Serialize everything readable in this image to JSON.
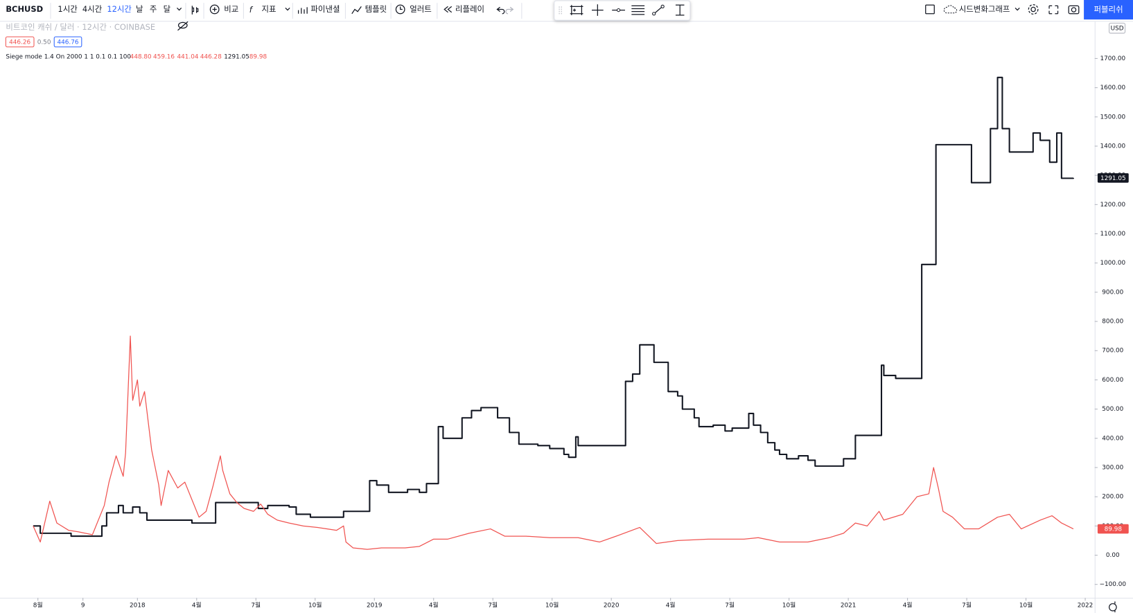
{
  "toolbar": {
    "symbol": "BCHUSD",
    "intervals": [
      "1시간",
      "4시간",
      "12시간",
      "날",
      "주",
      "달"
    ],
    "buttons": [
      "비교",
      "지표",
      "파이낸셜",
      "템플릿",
      "얼러트",
      "리플레이"
    ],
    "layout_name": "시드변화그래프",
    "publish": "퍼블리쉬"
  },
  "legend": {
    "title": "비트코인 캐쉬 / 달러 · 12시간 · COINBASE",
    "bid": "446.26",
    "spread": "0.50",
    "ask": "446.76",
    "indicator": "Siege mode 1.4 On 2000 1 1 0.1 0.1 100",
    "indicator_values": [
      "448.80",
      "459.16",
      "441.04",
      "446.28"
    ]
  },
  "chart_data": {
    "type": "line",
    "currency": "USD",
    "grid": false,
    "xlim": [
      2017.42,
      2022.04
    ],
    "ylim": [
      -146,
      1826
    ],
    "xticks": [
      {
        "value": 2017.58,
        "label": "8월"
      },
      {
        "value": 2017.77,
        "label": "9"
      },
      2018,
      {
        "value": 2018.25,
        "label": "4월"
      },
      {
        "value": 2018.5,
        "label": "7월"
      },
      {
        "value": 2018.75,
        "label": "10월"
      },
      2019,
      {
        "value": 2019.25,
        "label": "4월"
      },
      {
        "value": 2019.5,
        "label": "7월"
      },
      {
        "value": 2019.75,
        "label": "10월"
      },
      2020,
      {
        "value": 2020.25,
        "label": "4월"
      },
      {
        "value": 2020.5,
        "label": "7월"
      },
      {
        "value": 2020.75,
        "label": "10월"
      },
      2021,
      {
        "value": 2021.25,
        "label": "4월"
      },
      {
        "value": 2021.5,
        "label": "7월"
      },
      {
        "value": 2021.75,
        "label": "10월"
      },
      2022
    ],
    "yticks": [
      {
        "value": -100,
        "label": "−100.00"
      },
      {
        "value": 0,
        "label": "0.00"
      },
      {
        "value": 100,
        "label": "100.00"
      },
      {
        "value": 200,
        "label": "200.00"
      },
      {
        "value": 300,
        "label": "300.00"
      },
      {
        "value": 400,
        "label": "400.00"
      },
      {
        "value": 500,
        "label": "500.00"
      },
      {
        "value": 600,
        "label": "600.00"
      },
      {
        "value": 700,
        "label": "700.00"
      },
      {
        "value": 800,
        "label": "800.00"
      },
      {
        "value": 900,
        "label": "900.00"
      },
      {
        "value": 1000,
        "label": "1000.00"
      },
      {
        "value": 1100,
        "label": "1100.00"
      },
      {
        "value": 1200,
        "label": "1200.00"
      },
      {
        "value": 1300,
        "label": "1300.00"
      },
      {
        "value": 1400,
        "label": "1400.00"
      },
      {
        "value": 1500,
        "label": "1500.00"
      },
      {
        "value": 1600,
        "label": "1600.00"
      },
      {
        "value": 1700,
        "label": "1700.00"
      }
    ],
    "series": [
      {
        "color": "#131722",
        "step": true,
        "x": [
          2017.56,
          2017.59,
          2017.72,
          2017.85,
          2017.87,
          2017.92,
          2017.94,
          2017.98,
          2018.01,
          2018.04,
          2018.23,
          2018.33,
          2018.45,
          2018.51,
          2018.55,
          2018.64,
          2018.67,
          2018.73,
          2018.87,
          2018.98,
          2019.01,
          2019.06,
          2019.14,
          2019.19,
          2019.22,
          2019.27,
          2019.29,
          2019.37,
          2019.41,
          2019.45,
          2019.52,
          2019.57,
          2019.61,
          2019.69,
          2019.74,
          2019.8,
          2019.82,
          2019.85,
          2019.86,
          2020.06,
          2020.09,
          2020.12,
          2020.18,
          2020.24,
          2020.28,
          2020.3,
          2020.35,
          2020.37,
          2020.43,
          2020.48,
          2020.51,
          2020.58,
          2020.6,
          2020.63,
          2020.66,
          2020.69,
          2020.71,
          2020.74,
          2020.79,
          2020.83,
          2020.86,
          2020.98,
          2021.03,
          2021.14,
          2021.15,
          2021.2,
          2021.31,
          2021.37,
          2021.52,
          2021.6,
          2021.63,
          2021.65,
          2021.68,
          2021.78,
          2021.81,
          2021.85,
          2021.88,
          2021.9,
          2021.95
        ],
        "values": [
          100,
          75,
          65,
          100,
          145,
          170,
          145,
          165,
          145,
          120,
          110,
          180,
          180,
          160,
          170,
          165,
          140,
          130,
          150,
          255,
          240,
          215,
          225,
          215,
          245,
          440,
          400,
          470,
          495,
          505,
          470,
          420,
          380,
          375,
          365,
          345,
          335,
          405,
          375,
          595,
          620,
          720,
          660,
          560,
          545,
          500,
          470,
          440,
          445,
          425,
          435,
          485,
          445,
          420,
          385,
          360,
          345,
          330,
          340,
          325,
          305,
          330,
          410,
          650,
          615,
          605,
          995,
          1405,
          1275,
          1460,
          1635,
          1460,
          1380,
          1445,
          1420,
          1345,
          1445,
          1290,
          1291.05
        ]
      },
      {
        "color": "#f05350",
        "step": false,
        "x": [
          2017.56,
          2017.59,
          2017.63,
          2017.66,
          2017.71,
          2017.75,
          2017.81,
          2017.86,
          2017.88,
          2017.91,
          2017.94,
          2017.95,
          2017.97,
          2017.98,
          2018.0,
          2018.01,
          2018.03,
          2018.06,
          2018.09,
          2018.1,
          2018.13,
          2018.17,
          2018.2,
          2018.23,
          2018.26,
          2018.29,
          2018.32,
          2018.35,
          2018.36,
          2018.39,
          2018.42,
          2018.45,
          2018.49,
          2018.52,
          2018.55,
          2018.59,
          2018.64,
          2018.7,
          2018.76,
          2018.84,
          2018.87,
          2018.88,
          2018.91,
          2018.97,
          2019.03,
          2019.13,
          2019.19,
          2019.25,
          2019.31,
          2019.4,
          2019.49,
          2019.55,
          2019.64,
          2019.74,
          2019.86,
          2019.95,
          2020.02,
          2020.12,
          2020.19,
          2020.28,
          2020.41,
          2020.56,
          2020.62,
          2020.71,
          2020.83,
          2020.92,
          2020.98,
          2021.03,
          2021.08,
          2021.13,
          2021.15,
          2021.23,
          2021.29,
          2021.34,
          2021.36,
          2021.38,
          2021.4,
          2021.44,
          2021.49,
          2021.55,
          2021.63,
          2021.68,
          2021.73,
          2021.81,
          2021.86,
          2021.9,
          2021.95
        ],
        "values": [
          100,
          45,
          185,
          110,
          85,
          80,
          70,
          170,
          250,
          340,
          270,
          350,
          750,
          530,
          600,
          510,
          560,
          360,
          240,
          170,
          290,
          230,
          250,
          190,
          130,
          150,
          240,
          340,
          290,
          210,
          180,
          160,
          150,
          175,
          140,
          120,
          110,
          100,
          95,
          85,
          100,
          45,
          25,
          20,
          25,
          25,
          30,
          55,
          55,
          75,
          90,
          65,
          65,
          60,
          60,
          45,
          65,
          95,
          40,
          50,
          55,
          55,
          60,
          45,
          45,
          60,
          75,
          110,
          100,
          150,
          120,
          140,
          200,
          210,
          300,
          230,
          150,
          130,
          90,
          90,
          130,
          140,
          90,
          120,
          135,
          110,
          89.98
        ]
      }
    ]
  }
}
